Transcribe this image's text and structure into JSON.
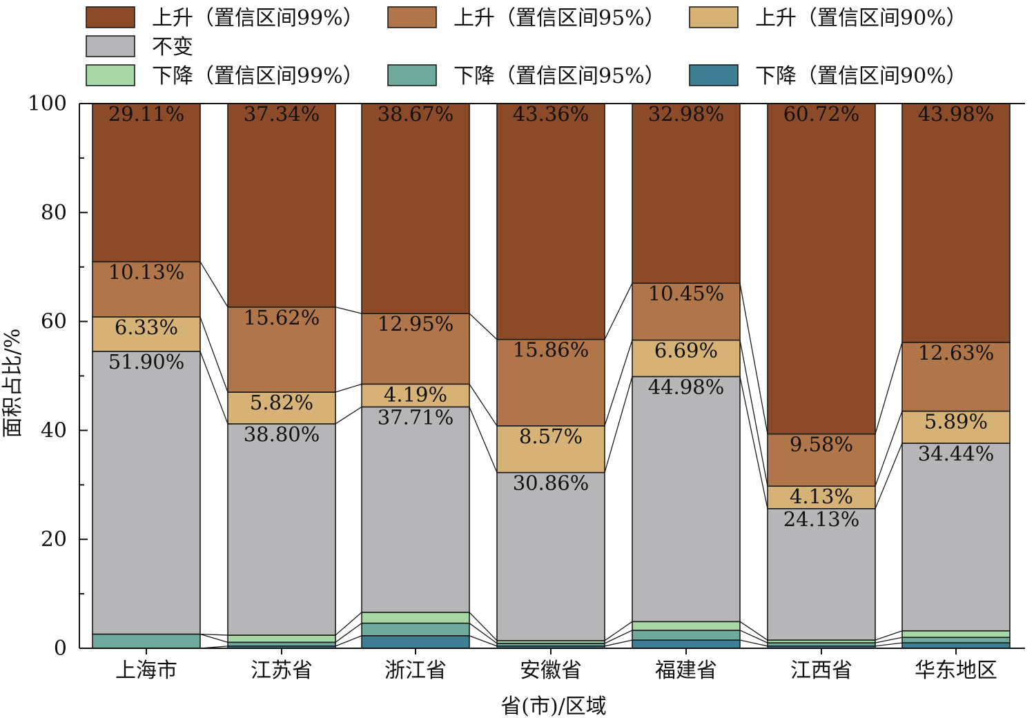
{
  "chart_data": {
    "type": "bar",
    "stacked": true,
    "title": "",
    "xlabel": "省(市)/区域",
    "ylabel": "面积占比/%",
    "ylim": [
      0,
      100
    ],
    "yticks": [
      "0",
      "20",
      "40",
      "60",
      "80",
      "100"
    ],
    "categories": [
      "上海市",
      "江苏省",
      "浙江省",
      "安徽省",
      "福建省",
      "江西省",
      "华东地区"
    ],
    "legend_position": "top",
    "series": [
      {
        "name": "下降（置信区间90%）",
        "color": "#3e7f93",
        "values": [
          0.0,
          0.4,
          2.3,
          0.4,
          1.5,
          0.4,
          1.0
        ]
      },
      {
        "name": "下降（置信区间95%）",
        "color": "#6ea99b",
        "values": [
          2.6,
          0.7,
          2.3,
          0.5,
          1.8,
          0.6,
          1.0
        ]
      },
      {
        "name": "下降（置信区间99%）",
        "color": "#a8d7a6",
        "values": [
          0.0,
          1.3,
          2.0,
          0.5,
          1.6,
          0.5,
          1.2
        ]
      },
      {
        "name": "不变",
        "color": "#b6b6b8",
        "values": [
          51.9,
          38.8,
          37.71,
          30.86,
          44.98,
          24.13,
          34.44
        ]
      },
      {
        "name": "上升（置信区间90%）",
        "color": "#d6b276",
        "values": [
          6.33,
          5.82,
          4.19,
          8.57,
          6.69,
          4.13,
          5.89
        ]
      },
      {
        "name": "上升（置信区间95%）",
        "color": "#b07649",
        "values": [
          10.13,
          15.62,
          12.95,
          15.86,
          10.45,
          9.58,
          12.63
        ]
      },
      {
        "name": "上升（置信区间99%）",
        "color": "#8b4b29",
        "values": [
          29.11,
          37.34,
          38.67,
          43.36,
          32.98,
          60.72,
          43.98
        ]
      }
    ],
    "legend_order": [
      6,
      5,
      4,
      3,
      2,
      1,
      0
    ],
    "data_labels": [
      [
        "51.90%",
        "6.33%",
        "10.13%",
        "29.11%"
      ],
      [
        "38.80%",
        "5.82%",
        "15.62%",
        "37.34%"
      ],
      [
        "37.71%",
        "4.19%",
        "12.95%",
        "38.67%"
      ],
      [
        "30.86%",
        "8.57%",
        "15.86%",
        "43.36%"
      ],
      [
        "44.98%",
        "6.69%",
        "10.45%",
        "32.98%"
      ],
      [
        "24.13%",
        "4.13%",
        "9.58%",
        "60.72%"
      ],
      [
        "34.44%",
        "5.89%",
        "12.63%",
        "43.98%"
      ]
    ]
  }
}
